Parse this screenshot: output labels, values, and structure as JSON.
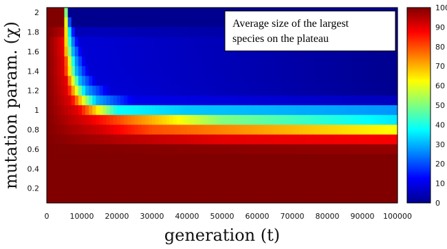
{
  "chart_data": {
    "type": "heatmap",
    "xlabel": "generation (t)",
    "ylabel": "mutation param. (χ)",
    "annotation_lines": [
      "Average size of the largest",
      "species on the plateau"
    ],
    "xlim": [
      0,
      100000
    ],
    "ylim": [
      0.1,
      2.0
    ],
    "x_ticks": [
      "0",
      "10000",
      "20000",
      "30000",
      "40000",
      "50000",
      "60000",
      "70000",
      "80000",
      "90000",
      "100000"
    ],
    "y_ticks": [
      "2",
      "1.8",
      "1.6",
      "1.4",
      "1.2",
      "1",
      "0.8",
      "0.6",
      "0.4",
      "0.2"
    ],
    "colorbar_ticks": [
      "100",
      "90",
      "80",
      "70",
      "60",
      "50",
      "40",
      "30",
      "20",
      "10",
      "0"
    ],
    "colorbar_range": [
      0,
      100
    ],
    "colormap": "jet",
    "grid": false,
    "rows": [
      {
        "chi": 2.0,
        "profile": [
          [
            0,
            100
          ],
          [
            5000,
            100
          ],
          [
            6000,
            0
          ],
          [
            100000,
            0
          ]
        ]
      },
      {
        "chi": 1.9,
        "profile": [
          [
            0,
            100
          ],
          [
            4500,
            100
          ],
          [
            7000,
            0
          ],
          [
            100000,
            0
          ]
        ]
      },
      {
        "chi": 1.8,
        "profile": [
          [
            0,
            100
          ],
          [
            4500,
            95
          ],
          [
            6500,
            35
          ],
          [
            8000,
            5
          ],
          [
            100000,
            0
          ]
        ]
      },
      {
        "chi": 1.7,
        "profile": [
          [
            0,
            100
          ],
          [
            4500,
            90
          ],
          [
            7000,
            30
          ],
          [
            9000,
            8
          ],
          [
            100000,
            0
          ]
        ]
      },
      {
        "chi": 1.6,
        "profile": [
          [
            0,
            100
          ],
          [
            4500,
            90
          ],
          [
            7500,
            30
          ],
          [
            10000,
            8
          ],
          [
            100000,
            0
          ]
        ]
      },
      {
        "chi": 1.5,
        "profile": [
          [
            0,
            100
          ],
          [
            5000,
            90
          ],
          [
            8000,
            30
          ],
          [
            11000,
            8
          ],
          [
            100000,
            0
          ]
        ]
      },
      {
        "chi": 1.4,
        "profile": [
          [
            0,
            100
          ],
          [
            5000,
            90
          ],
          [
            8500,
            30
          ],
          [
            12000,
            8
          ],
          [
            100000,
            0
          ]
        ]
      },
      {
        "chi": 1.3,
        "profile": [
          [
            0,
            100
          ],
          [
            5500,
            90
          ],
          [
            9500,
            30
          ],
          [
            14000,
            8
          ],
          [
            100000,
            0
          ]
        ]
      },
      {
        "chi": 1.2,
        "profile": [
          [
            0,
            100
          ],
          [
            6000,
            90
          ],
          [
            11000,
            30
          ],
          [
            18000,
            8
          ],
          [
            100000,
            0
          ]
        ]
      },
      {
        "chi": 1.1,
        "profile": [
          [
            0,
            100
          ],
          [
            7000,
            90
          ],
          [
            14000,
            30
          ],
          [
            25000,
            10
          ],
          [
            100000,
            5
          ]
        ]
      },
      {
        "chi": 1.0,
        "profile": [
          [
            0,
            100
          ],
          [
            9000,
            90
          ],
          [
            20000,
            38
          ],
          [
            40000,
            32
          ],
          [
            100000,
            27
          ]
        ]
      },
      {
        "chi": 0.9,
        "profile": [
          [
            0,
            100
          ],
          [
            12000,
            90
          ],
          [
            25000,
            75
          ],
          [
            50000,
            50
          ],
          [
            100000,
            35
          ]
        ]
      },
      {
        "chi": 0.8,
        "profile": [
          [
            0,
            100
          ],
          [
            15000,
            92
          ],
          [
            30000,
            80
          ],
          [
            60000,
            72
          ],
          [
            100000,
            62
          ]
        ]
      },
      {
        "chi": 0.7,
        "profile": [
          [
            0,
            100
          ],
          [
            20000,
            95
          ],
          [
            50000,
            90
          ],
          [
            100000,
            88
          ]
        ]
      },
      {
        "chi": 0.6,
        "profile": [
          [
            0,
            100
          ],
          [
            100000,
            98
          ]
        ]
      },
      {
        "chi": 0.5,
        "profile": [
          [
            0,
            100
          ],
          [
            100000,
            100
          ]
        ]
      },
      {
        "chi": 0.4,
        "profile": [
          [
            0,
            100
          ],
          [
            100000,
            100
          ]
        ]
      },
      {
        "chi": 0.3,
        "profile": [
          [
            0,
            100
          ],
          [
            100000,
            100
          ]
        ]
      },
      {
        "chi": 0.2,
        "profile": [
          [
            0,
            100
          ],
          [
            100000,
            100
          ]
        ]
      },
      {
        "chi": 0.1,
        "profile": [
          [
            0,
            100
          ],
          [
            100000,
            100
          ]
        ]
      }
    ]
  }
}
